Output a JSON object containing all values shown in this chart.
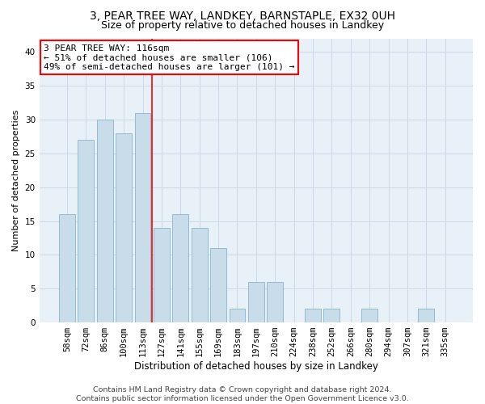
{
  "title1": "3, PEAR TREE WAY, LANDKEY, BARNSTAPLE, EX32 0UH",
  "title2": "Size of property relative to detached houses in Landkey",
  "xlabel": "Distribution of detached houses by size in Landkey",
  "ylabel": "Number of detached properties",
  "bar_labels": [
    "58sqm",
    "72sqm",
    "86sqm",
    "100sqm",
    "113sqm",
    "127sqm",
    "141sqm",
    "155sqm",
    "169sqm",
    "183sqm",
    "197sqm",
    "210sqm",
    "224sqm",
    "238sqm",
    "252sqm",
    "266sqm",
    "280sqm",
    "294sqm",
    "307sqm",
    "321sqm",
    "335sqm"
  ],
  "bar_values": [
    16,
    27,
    30,
    28,
    31,
    14,
    16,
    14,
    11,
    2,
    6,
    6,
    0,
    2,
    2,
    0,
    2,
    0,
    0,
    2,
    0
  ],
  "bar_color": "#c9dcea",
  "bar_edge_color": "#8ab4cc",
  "annotation_text": "3 PEAR TREE WAY: 116sqm\n← 51% of detached houses are smaller (106)\n49% of semi-detached houses are larger (101) →",
  "annotation_box_color": "white",
  "annotation_box_edge_color": "red",
  "vline_x": 4.5,
  "vline_color": "red",
  "ylim": [
    0,
    42
  ],
  "yticks": [
    0,
    5,
    10,
    15,
    20,
    25,
    30,
    35,
    40
  ],
  "grid_color": "#ccd8e8",
  "background_color": "#e8f0f8",
  "footer1": "Contains HM Land Registry data © Crown copyright and database right 2024.",
  "footer2": "Contains public sector information licensed under the Open Government Licence v3.0.",
  "title1_fontsize": 10,
  "title2_fontsize": 9,
  "xlabel_fontsize": 8.5,
  "ylabel_fontsize": 8,
  "tick_fontsize": 7.5,
  "footer_fontsize": 6.8,
  "annotation_fontsize": 8
}
